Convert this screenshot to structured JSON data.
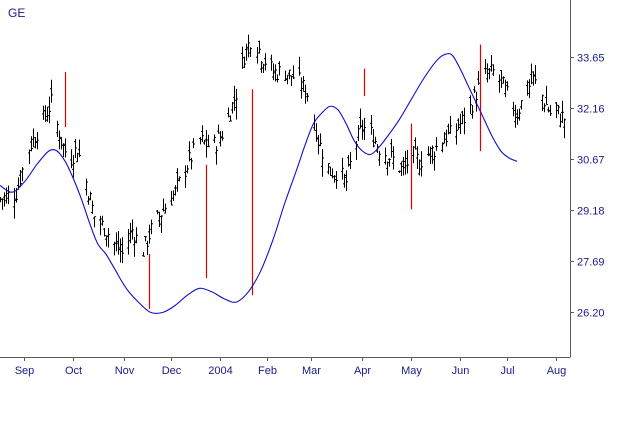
{
  "chart_data": {
    "type": "ohlc",
    "title": "GE",
    "colors": {
      "price_bars": "#000000",
      "envelope_line": "#1010c8",
      "marker_lines": "#e00000",
      "axis_labels": "#1a1a8c",
      "frame": "#5a5a5a"
    },
    "y_axis": {
      "position": "right",
      "ylim": [
        24.9,
        35.3
      ],
      "ticks": [
        33.65,
        32.16,
        30.67,
        29.18,
        27.69,
        26.2
      ],
      "tick_labels": [
        "33.65",
        "32.16",
        "30.67",
        "29.18",
        "27.69",
        "26.20"
      ]
    },
    "x_axis": {
      "xlim": [
        0,
        280
      ],
      "ticks": [
        {
          "label": "Sep",
          "day": 12
        },
        {
          "label": "Oct",
          "day": 36
        },
        {
          "label": "Nov",
          "day": 61
        },
        {
          "label": "Dec",
          "day": 84
        },
        {
          "label": "2004",
          "day": 108
        },
        {
          "label": "Feb",
          "day": 131
        },
        {
          "label": "Mar",
          "day": 153
        },
        {
          "label": "Apr",
          "day": 178
        },
        {
          "label": "May",
          "day": 202
        },
        {
          "label": "Jun",
          "day": 226
        },
        {
          "label": "Jul",
          "day": 249
        },
        {
          "label": "Aug",
          "day": 273
        }
      ]
    },
    "close_anchors": [
      [
        0,
        29.5
      ],
      [
        8,
        29.7
      ],
      [
        14,
        31.0
      ],
      [
        20,
        31.7
      ],
      [
        25,
        32.3
      ],
      [
        30,
        31.2
      ],
      [
        34,
        30.6
      ],
      [
        38,
        31.0
      ],
      [
        42,
        30.0
      ],
      [
        46,
        29.0
      ],
      [
        52,
        28.6
      ],
      [
        56,
        28.2
      ],
      [
        60,
        27.9
      ],
      [
        65,
        28.6
      ],
      [
        70,
        28.0
      ],
      [
        74,
        28.6
      ],
      [
        80,
        29.2
      ],
      [
        86,
        29.7
      ],
      [
        92,
        30.5
      ],
      [
        98,
        31.2
      ],
      [
        104,
        31.0
      ],
      [
        110,
        31.5
      ],
      [
        116,
        32.6
      ],
      [
        120,
        33.7
      ],
      [
        124,
        34.3
      ],
      [
        128,
        33.7
      ],
      [
        134,
        33.2
      ],
      [
        140,
        33.2
      ],
      [
        146,
        33.0
      ],
      [
        152,
        32.5
      ],
      [
        156,
        31.2
      ],
      [
        162,
        30.3
      ],
      [
        166,
        30.3
      ],
      [
        170,
        30.0
      ],
      [
        174,
        31.0
      ],
      [
        178,
        31.6
      ],
      [
        182,
        31.4
      ],
      [
        186,
        31.0
      ],
      [
        190,
        30.8
      ],
      [
        194,
        30.6
      ],
      [
        198,
        30.3
      ],
      [
        202,
        30.8
      ],
      [
        206,
        30.6
      ],
      [
        210,
        30.8
      ],
      [
        214,
        31.0
      ],
      [
        218,
        31.3
      ],
      [
        222,
        31.4
      ],
      [
        226,
        31.7
      ],
      [
        230,
        32.0
      ],
      [
        234,
        32.6
      ],
      [
        238,
        33.1
      ],
      [
        242,
        33.2
      ],
      [
        246,
        32.9
      ],
      [
        250,
        32.4
      ],
      [
        254,
        32.0
      ],
      [
        258,
        32.6
      ],
      [
        262,
        33.0
      ],
      [
        266,
        32.5
      ],
      [
        270,
        32.0
      ],
      [
        274,
        32.0
      ],
      [
        278,
        31.8
      ]
    ],
    "envelope": [
      [
        0,
        29.9
      ],
      [
        6,
        29.7
      ],
      [
        12,
        30.0
      ],
      [
        18,
        30.5
      ],
      [
        24,
        30.9
      ],
      [
        28,
        30.9
      ],
      [
        32,
        30.6
      ],
      [
        36,
        30.1
      ],
      [
        40,
        29.5
      ],
      [
        44,
        28.8
      ],
      [
        48,
        28.2
      ],
      [
        52,
        27.9
      ],
      [
        56,
        27.5
      ],
      [
        62,
        26.9
      ],
      [
        68,
        26.5
      ],
      [
        74,
        26.2
      ],
      [
        80,
        26.2
      ],
      [
        86,
        26.4
      ],
      [
        92,
        26.7
      ],
      [
        98,
        26.9
      ],
      [
        104,
        26.8
      ],
      [
        110,
        26.6
      ],
      [
        116,
        26.5
      ],
      [
        122,
        26.8
      ],
      [
        128,
        27.4
      ],
      [
        134,
        28.3
      ],
      [
        140,
        29.4
      ],
      [
        146,
        30.4
      ],
      [
        150,
        31.1
      ],
      [
        154,
        31.7
      ],
      [
        158,
        32.0
      ],
      [
        162,
        32.2
      ],
      [
        166,
        32.1
      ],
      [
        170,
        31.7
      ],
      [
        174,
        31.2
      ],
      [
        178,
        30.9
      ],
      [
        182,
        30.8
      ],
      [
        186,
        31.0
      ],
      [
        190,
        31.3
      ],
      [
        196,
        31.8
      ],
      [
        202,
        32.4
      ],
      [
        208,
        33.0
      ],
      [
        214,
        33.5
      ],
      [
        218,
        33.7
      ],
      [
        222,
        33.7
      ],
      [
        226,
        33.3
      ],
      [
        230,
        32.8
      ],
      [
        234,
        32.3
      ],
      [
        238,
        31.8
      ],
      [
        242,
        31.3
      ],
      [
        246,
        30.9
      ],
      [
        250,
        30.7
      ],
      [
        254,
        30.6
      ]
    ],
    "markers": [
      {
        "day": 32,
        "low": 31.6,
        "high": 33.2
      },
      {
        "day": 73,
        "low": 26.3,
        "high": 27.9
      },
      {
        "day": 101,
        "low": 27.2,
        "high": 30.5
      },
      {
        "day": 124,
        "low": 26.7,
        "high": 32.7
      },
      {
        "day": 179,
        "low": 32.5,
        "high": 33.3
      },
      {
        "day": 202,
        "low": 29.2,
        "high": 31.7
      },
      {
        "day": 236,
        "low": 30.9,
        "high": 34.0
      }
    ]
  }
}
